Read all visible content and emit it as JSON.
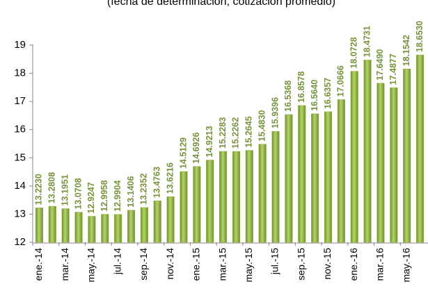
{
  "chart_data": {
    "type": "bar",
    "subtitle": "(fecha de determinación, cotización promedio)",
    "categories": [
      "ene.-14",
      null,
      "mar.-14",
      null,
      "may.-14",
      null,
      "jul.-14",
      null,
      "sep.-14",
      null,
      "nov.-14",
      null,
      "ene.-15",
      null,
      "mar.-15",
      null,
      "may.-15",
      null,
      "jul.-15",
      null,
      "sep.-15",
      null,
      "nov.-15",
      null,
      "ene.-16",
      null,
      "mar.-16",
      null,
      "may.-16",
      null
    ],
    "values": [
      13.223,
      13.2808,
      13.1951,
      13.0708,
      12.9247,
      12.9958,
      12.9904,
      13.1406,
      13.2352,
      13.4763,
      13.6216,
      14.5129,
      14.6926,
      14.9213,
      15.2283,
      15.2262,
      15.2645,
      15.483,
      15.9396,
      16.5368,
      16.8578,
      16.564,
      16.6357,
      17.0666,
      18.0728,
      18.4731,
      17.649,
      17.4877,
      18.1542,
      18.653
    ],
    "value_labels": [
      "13.2230",
      "13.2808",
      "13.1951",
      "13.0708",
      "12.9247",
      "12.9958",
      "12.9904",
      "13.1406",
      "13.2352",
      "13.4763",
      "13.6216",
      "14.5129",
      "14.6926",
      "14.9213",
      "15.2283",
      "15.2262",
      "15.2645",
      "15.4830",
      "15.9396",
      "16.5368",
      "16.8578",
      "16.5640",
      "16.6357",
      "17.0666",
      "18.0728",
      "18.4731",
      "17.6490",
      "17.4877",
      "18.1542",
      "18.6530"
    ],
    "color": "#8db33a",
    "label_color": "#77933c",
    "ylim": [
      12,
      19
    ],
    "yticks": [
      12,
      13,
      14,
      15,
      16,
      17,
      18,
      19
    ],
    "grid": false
  }
}
